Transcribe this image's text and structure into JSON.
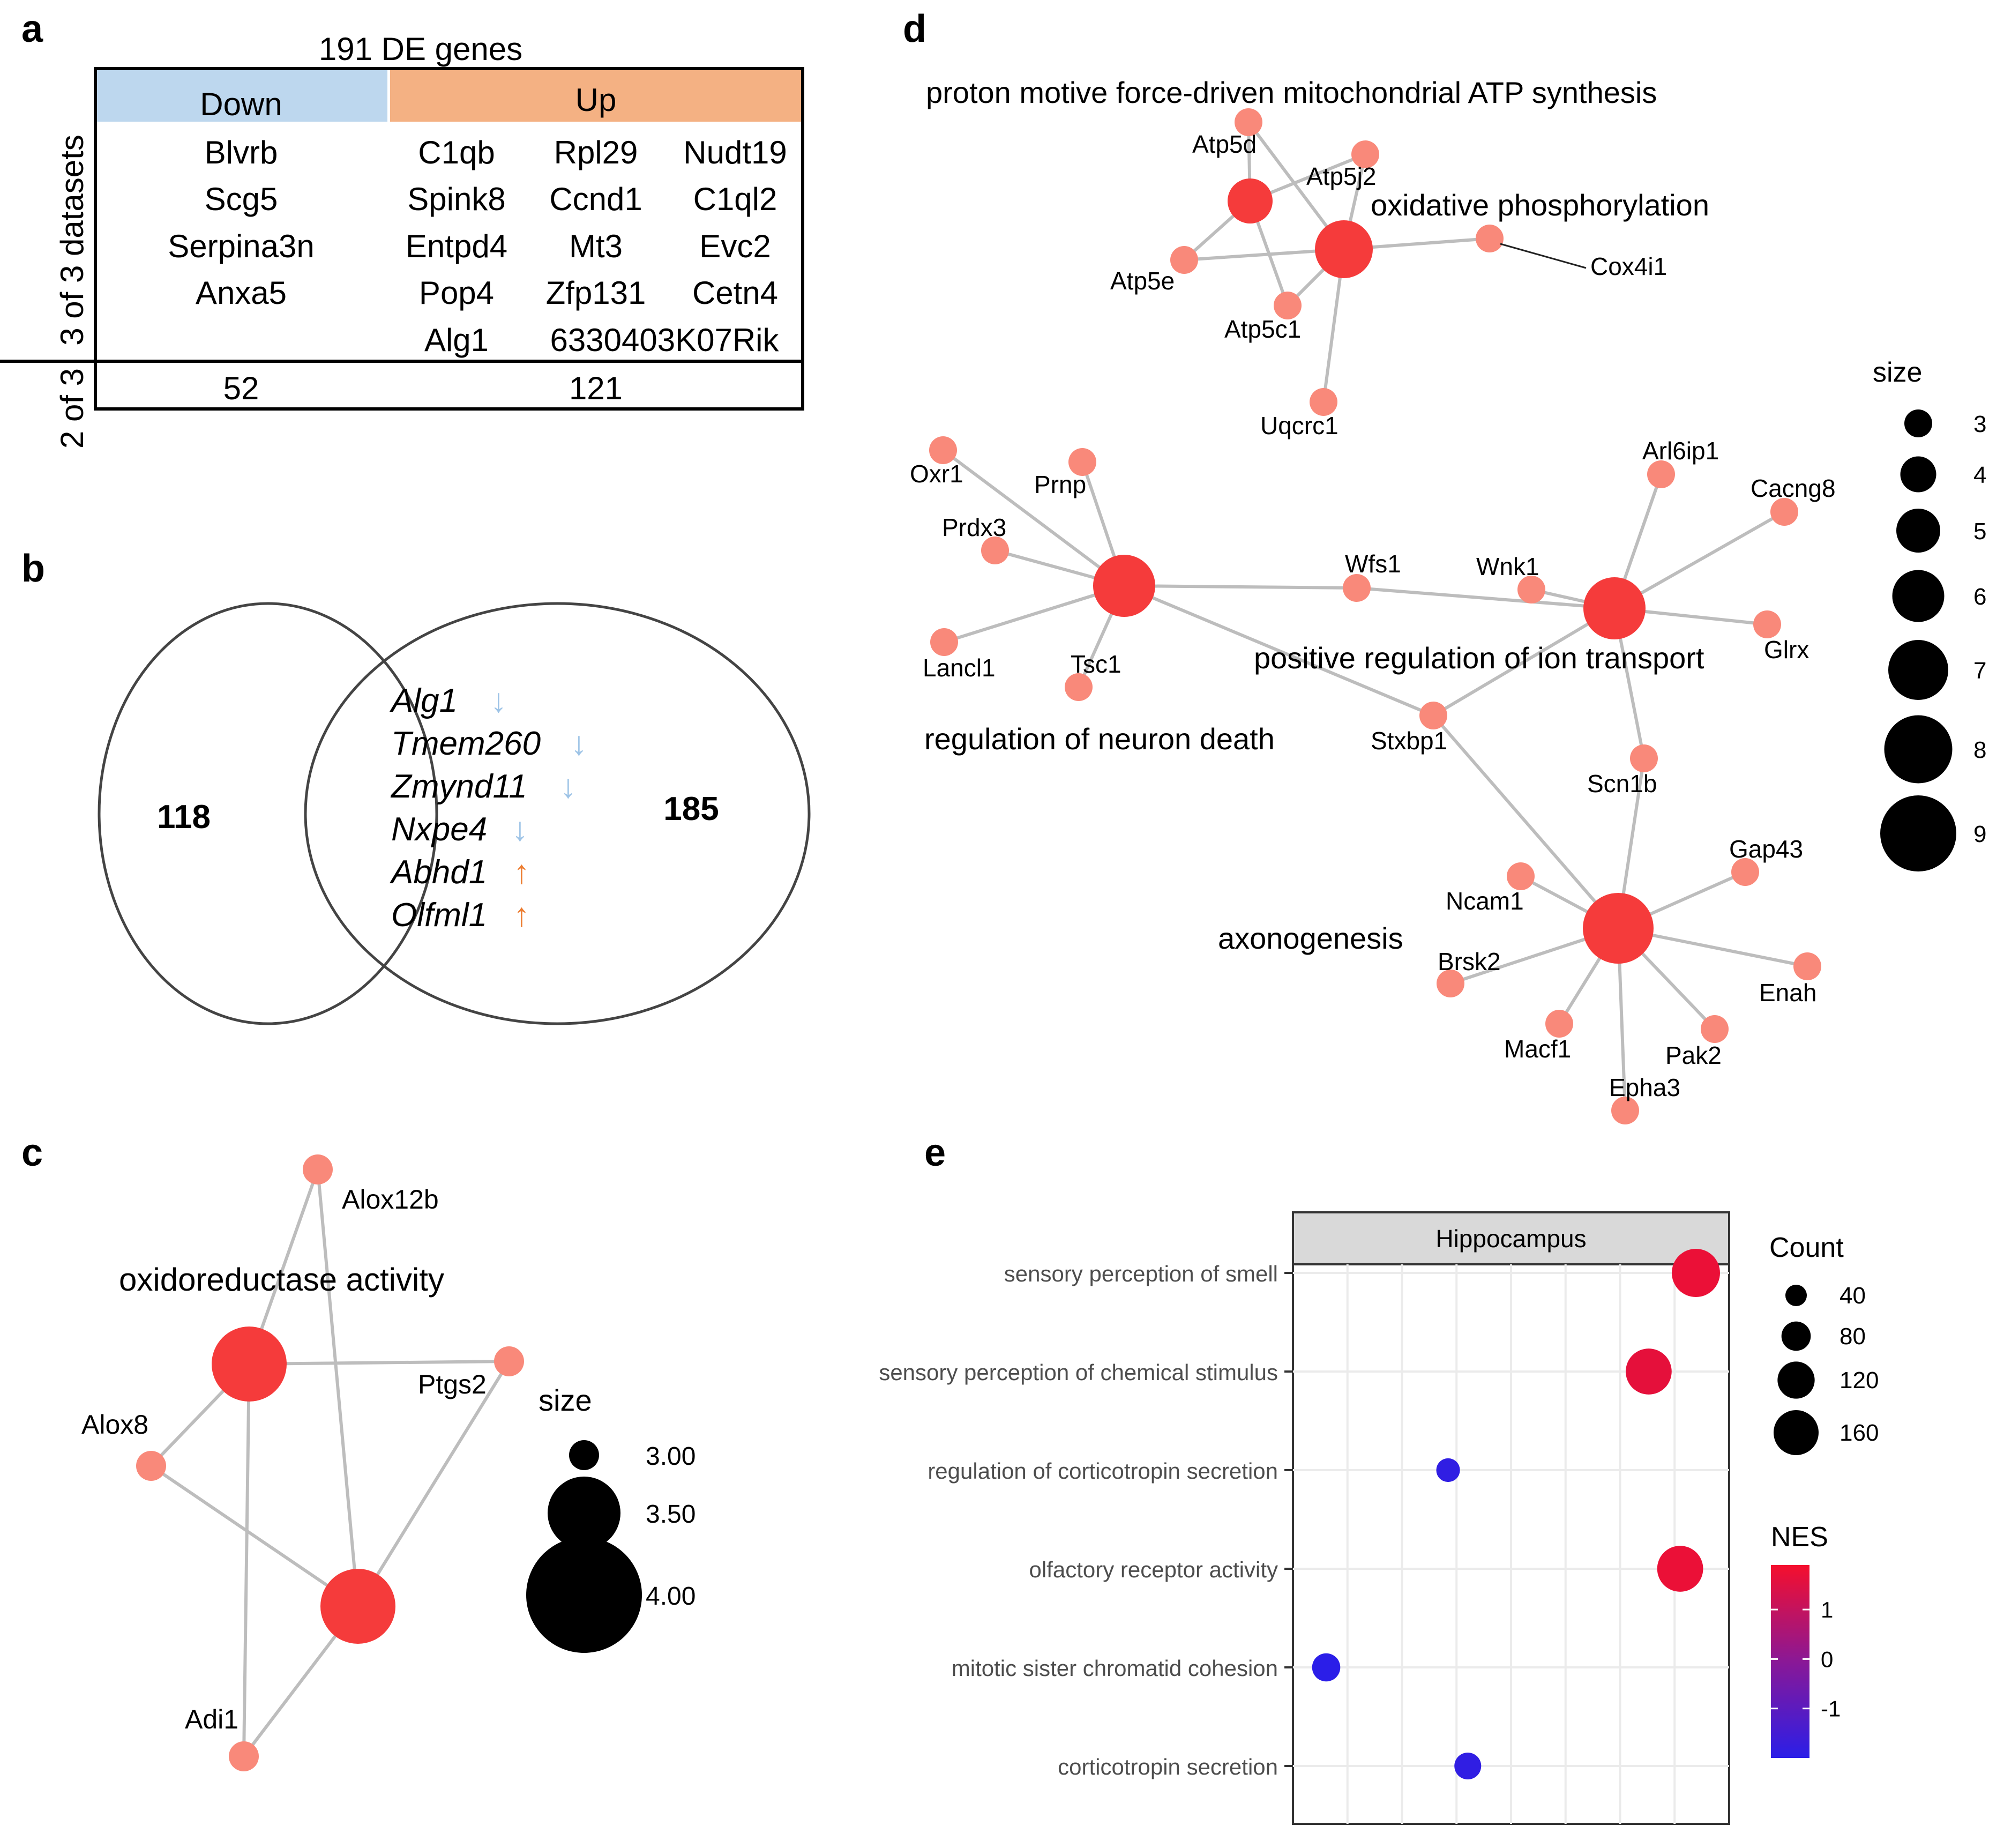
{
  "panels": {
    "a": "a",
    "b": "b",
    "c": "c",
    "d": "d",
    "e": "e"
  },
  "panel_a": {
    "title": "191 DE genes",
    "header_down": "Down",
    "header_up": "Up",
    "row_label_3of3": "3 of 3 datasets",
    "row_label_2of3": "2 of 3",
    "down_genes": [
      "Blvrb",
      "Scg5",
      "Serpina3n",
      "Anxa5"
    ],
    "up_genes": [
      [
        "C1qb",
        "Rpl29",
        "Nudt19"
      ],
      [
        "Spink8",
        "Ccnd1",
        "C1ql2"
      ],
      [
        "Entpd4",
        "Mt3",
        "Evc2"
      ],
      [
        "Pop4",
        "Zfp131",
        "Cetn4"
      ],
      [
        "Alg1",
        "6330403K07Rik",
        ""
      ]
    ],
    "count_down": "52",
    "count_up": "121",
    "colors": {
      "down_bg": "#bdd7ee",
      "up_bg": "#f4b183"
    }
  },
  "panel_b": {
    "left_count": "118",
    "right_count": "185",
    "genes": [
      {
        "name": "Alg1",
        "arrow": "↓",
        "direction": "down"
      },
      {
        "name": "Tmem260",
        "arrow": "↓",
        "direction": "down"
      },
      {
        "name": "Zmynd11",
        "arrow": "↓",
        "direction": "down"
      },
      {
        "name": "Nxpe4",
        "arrow": "↓",
        "direction": "down"
      },
      {
        "name": "Abhd1",
        "arrow": "↑",
        "direction": "up"
      },
      {
        "name": "Olfml1",
        "arrow": "↑",
        "direction": "up"
      }
    ],
    "colors": {
      "down": "#9dc3e6",
      "up": "#ed7d31"
    }
  },
  "panel_c": {
    "term": "oxidoreductase activity",
    "genes": [
      "Alox12b",
      "Ptgs2",
      "Alox8",
      "Adi1"
    ],
    "legend_title": "size",
    "legend_labels": [
      "3.00",
      "3.50",
      "4.00"
    ],
    "legend_sizes": [
      3.0,
      3.5,
      4.0
    ]
  },
  "panel_d": {
    "terms": [
      "proton motive force-driven mitochondrial ATP synthesis",
      "oxidative phosphorylation",
      "regulation of neuron death",
      "positive regulation of ion transport",
      "axonogenesis"
    ],
    "genes": [
      "Atp5d",
      "Atp5j2",
      "Atp5e",
      "Atp5c1",
      "Cox4i1",
      "Uqcrc1",
      "Oxr1",
      "Prnp",
      "Prdx3",
      "Lancl1",
      "Tsc1",
      "Wfs1",
      "Wnk1",
      "Arl6ip1",
      "Cacng8",
      "Glrx",
      "Stxbp1",
      "Scn1b",
      "Ncam1",
      "Brsk2",
      "Gap43",
      "Enah",
      "Macf1",
      "Pak2",
      "Epha3"
    ],
    "legend_title": "size",
    "legend_sizes": [
      3,
      4,
      5,
      6,
      7,
      8,
      9
    ],
    "legend_labels": [
      "3",
      "4",
      "5",
      "6",
      "7",
      "8",
      "9"
    ]
  },
  "colors": {
    "term_node": "#f53b3b",
    "gene_node": "#f9897a",
    "edge": "#bdbdbd"
  },
  "chart_data": {
    "type": "scatter",
    "facet_title": "Hippocampus",
    "categories": [
      "sensory perception of smell",
      "sensory perception of chemical stimulus",
      "regulation of corticotropin secretion",
      "olfactory receptor activity",
      "mitotic sister chromatid cohesion",
      "corticotropin secretion"
    ],
    "x": [
      0.97,
      0.85,
      0.34,
      0.93,
      0.03,
      0.39
    ],
    "count": [
      160,
      140,
      15,
      140,
      30,
      25
    ],
    "nes": [
      1.7,
      1.6,
      -1.9,
      1.7,
      -2.0,
      -1.9
    ],
    "xlim": [
      0,
      1
    ],
    "size_legend_title": "Count",
    "size_legend_values": [
      40,
      80,
      120,
      160
    ],
    "size_legend_labels": [
      "40",
      "80",
      "120",
      "160"
    ],
    "color_legend_title": "NES",
    "color_legend_labels": [
      "1",
      "0",
      "-1"
    ],
    "color_legend_values": [
      1,
      0,
      -1
    ],
    "nes_range": [
      -2.0,
      1.9
    ],
    "color_low": "#2b1ee8",
    "color_high": "#f50f2d"
  }
}
